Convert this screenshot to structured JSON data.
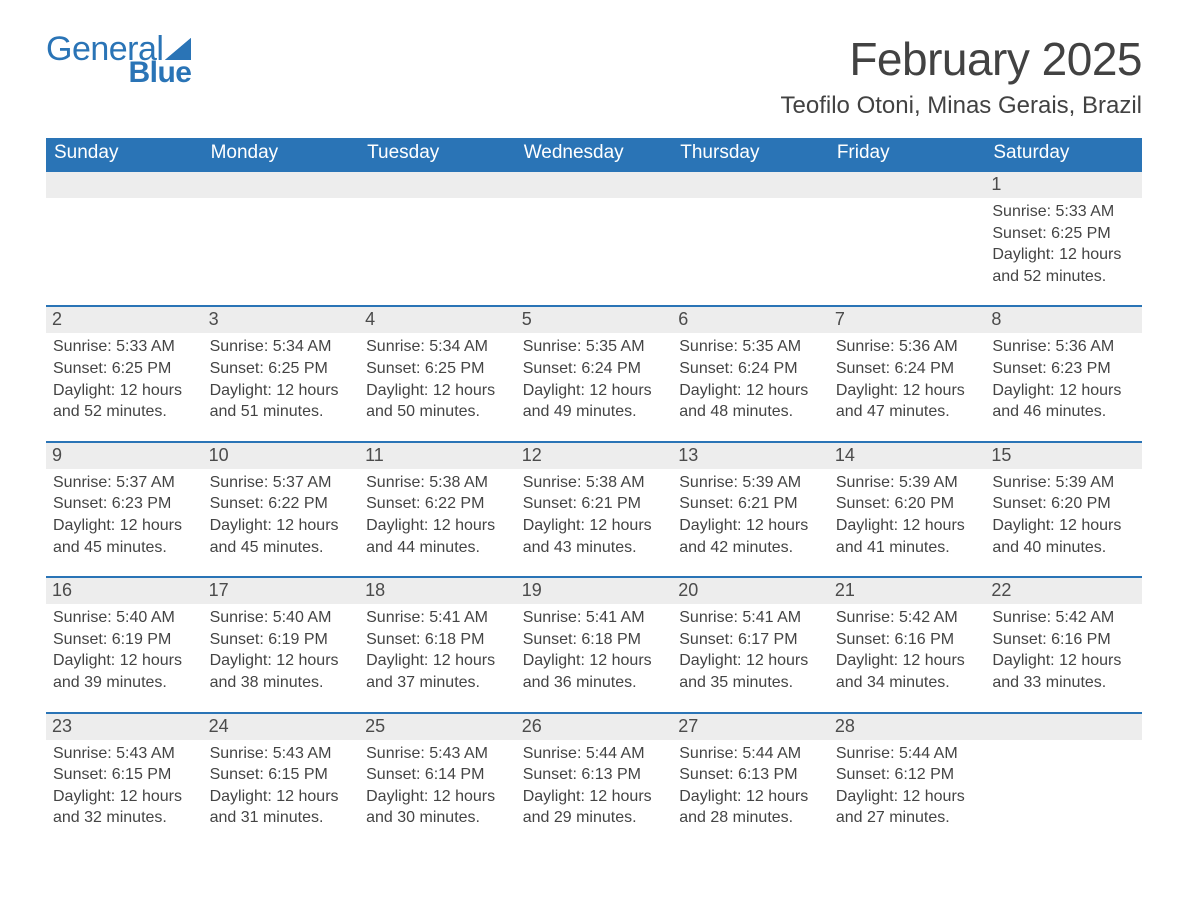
{
  "logo": {
    "word1": "General",
    "word2": "Blue"
  },
  "title": "February 2025",
  "location": "Teofilo Otoni, Minas Gerais, Brazil",
  "columns": [
    "Sunday",
    "Monday",
    "Tuesday",
    "Wednesday",
    "Thursday",
    "Friday",
    "Saturday"
  ],
  "colors": {
    "header_bg": "#2a74b6",
    "header_text": "#ffffff",
    "daynum_bg": "#ededed",
    "daynum_border": "#2a74b6",
    "text": "#444444",
    "logo": "#2a74b6",
    "page_bg": "#ffffff"
  },
  "fonts": {
    "title_pt": 46,
    "location_pt": 24,
    "header_pt": 19,
    "daynum_pt": 18,
    "body_pt": 16
  },
  "weeks": [
    [
      null,
      null,
      null,
      null,
      null,
      null,
      {
        "d": "1",
        "sunrise": "Sunrise: 5:33 AM",
        "sunset": "Sunset: 6:25 PM",
        "daylight": "Daylight: 12 hours and 52 minutes."
      }
    ],
    [
      {
        "d": "2",
        "sunrise": "Sunrise: 5:33 AM",
        "sunset": "Sunset: 6:25 PM",
        "daylight": "Daylight: 12 hours and 52 minutes."
      },
      {
        "d": "3",
        "sunrise": "Sunrise: 5:34 AM",
        "sunset": "Sunset: 6:25 PM",
        "daylight": "Daylight: 12 hours and 51 minutes."
      },
      {
        "d": "4",
        "sunrise": "Sunrise: 5:34 AM",
        "sunset": "Sunset: 6:25 PM",
        "daylight": "Daylight: 12 hours and 50 minutes."
      },
      {
        "d": "5",
        "sunrise": "Sunrise: 5:35 AM",
        "sunset": "Sunset: 6:24 PM",
        "daylight": "Daylight: 12 hours and 49 minutes."
      },
      {
        "d": "6",
        "sunrise": "Sunrise: 5:35 AM",
        "sunset": "Sunset: 6:24 PM",
        "daylight": "Daylight: 12 hours and 48 minutes."
      },
      {
        "d": "7",
        "sunrise": "Sunrise: 5:36 AM",
        "sunset": "Sunset: 6:24 PM",
        "daylight": "Daylight: 12 hours and 47 minutes."
      },
      {
        "d": "8",
        "sunrise": "Sunrise: 5:36 AM",
        "sunset": "Sunset: 6:23 PM",
        "daylight": "Daylight: 12 hours and 46 minutes."
      }
    ],
    [
      {
        "d": "9",
        "sunrise": "Sunrise: 5:37 AM",
        "sunset": "Sunset: 6:23 PM",
        "daylight": "Daylight: 12 hours and 45 minutes."
      },
      {
        "d": "10",
        "sunrise": "Sunrise: 5:37 AM",
        "sunset": "Sunset: 6:22 PM",
        "daylight": "Daylight: 12 hours and 45 minutes."
      },
      {
        "d": "11",
        "sunrise": "Sunrise: 5:38 AM",
        "sunset": "Sunset: 6:22 PM",
        "daylight": "Daylight: 12 hours and 44 minutes."
      },
      {
        "d": "12",
        "sunrise": "Sunrise: 5:38 AM",
        "sunset": "Sunset: 6:21 PM",
        "daylight": "Daylight: 12 hours and 43 minutes."
      },
      {
        "d": "13",
        "sunrise": "Sunrise: 5:39 AM",
        "sunset": "Sunset: 6:21 PM",
        "daylight": "Daylight: 12 hours and 42 minutes."
      },
      {
        "d": "14",
        "sunrise": "Sunrise: 5:39 AM",
        "sunset": "Sunset: 6:20 PM",
        "daylight": "Daylight: 12 hours and 41 minutes."
      },
      {
        "d": "15",
        "sunrise": "Sunrise: 5:39 AM",
        "sunset": "Sunset: 6:20 PM",
        "daylight": "Daylight: 12 hours and 40 minutes."
      }
    ],
    [
      {
        "d": "16",
        "sunrise": "Sunrise: 5:40 AM",
        "sunset": "Sunset: 6:19 PM",
        "daylight": "Daylight: 12 hours and 39 minutes."
      },
      {
        "d": "17",
        "sunrise": "Sunrise: 5:40 AM",
        "sunset": "Sunset: 6:19 PM",
        "daylight": "Daylight: 12 hours and 38 minutes."
      },
      {
        "d": "18",
        "sunrise": "Sunrise: 5:41 AM",
        "sunset": "Sunset: 6:18 PM",
        "daylight": "Daylight: 12 hours and 37 minutes."
      },
      {
        "d": "19",
        "sunrise": "Sunrise: 5:41 AM",
        "sunset": "Sunset: 6:18 PM",
        "daylight": "Daylight: 12 hours and 36 minutes."
      },
      {
        "d": "20",
        "sunrise": "Sunrise: 5:41 AM",
        "sunset": "Sunset: 6:17 PM",
        "daylight": "Daylight: 12 hours and 35 minutes."
      },
      {
        "d": "21",
        "sunrise": "Sunrise: 5:42 AM",
        "sunset": "Sunset: 6:16 PM",
        "daylight": "Daylight: 12 hours and 34 minutes."
      },
      {
        "d": "22",
        "sunrise": "Sunrise: 5:42 AM",
        "sunset": "Sunset: 6:16 PM",
        "daylight": "Daylight: 12 hours and 33 minutes."
      }
    ],
    [
      {
        "d": "23",
        "sunrise": "Sunrise: 5:43 AM",
        "sunset": "Sunset: 6:15 PM",
        "daylight": "Daylight: 12 hours and 32 minutes."
      },
      {
        "d": "24",
        "sunrise": "Sunrise: 5:43 AM",
        "sunset": "Sunset: 6:15 PM",
        "daylight": "Daylight: 12 hours and 31 minutes."
      },
      {
        "d": "25",
        "sunrise": "Sunrise: 5:43 AM",
        "sunset": "Sunset: 6:14 PM",
        "daylight": "Daylight: 12 hours and 30 minutes."
      },
      {
        "d": "26",
        "sunrise": "Sunrise: 5:44 AM",
        "sunset": "Sunset: 6:13 PM",
        "daylight": "Daylight: 12 hours and 29 minutes."
      },
      {
        "d": "27",
        "sunrise": "Sunrise: 5:44 AM",
        "sunset": "Sunset: 6:13 PM",
        "daylight": "Daylight: 12 hours and 28 minutes."
      },
      {
        "d": "28",
        "sunrise": "Sunrise: 5:44 AM",
        "sunset": "Sunset: 6:12 PM",
        "daylight": "Daylight: 12 hours and 27 minutes."
      },
      null
    ]
  ]
}
